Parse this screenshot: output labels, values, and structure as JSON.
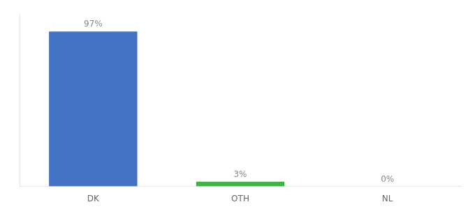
{
  "chart_data": {
    "type": "bar",
    "categories": [
      "DK",
      "OTH",
      "NL"
    ],
    "values": [
      97,
      3,
      0
    ],
    "value_labels": [
      "97%",
      "3%",
      "0%"
    ],
    "colors": [
      "#4472c4",
      "#3cb543",
      "#4472c4"
    ],
    "ylim": [
      0,
      108
    ],
    "data_labels": true,
    "tick_labels": "x",
    "grid": false
  }
}
